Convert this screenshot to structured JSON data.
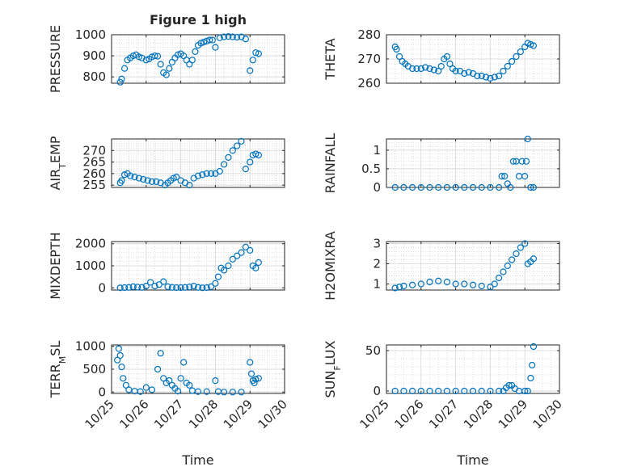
{
  "figure": {
    "title": "Figure 1 high"
  },
  "chart_data": [
    {
      "type": "scatter",
      "title": "Figure 1 high",
      "ylabel": "PRESSURE",
      "xlabel": "",
      "marker_color": "#0072bd",
      "xlim": [
        "10/25",
        "10/30"
      ],
      "ylim": [
        770,
        1000
      ],
      "yticks": [
        800,
        900,
        1000
      ],
      "xticklabels": [],
      "grid": true,
      "x": [
        "10/25 06:00",
        "10/25 07:00",
        "10/25 09:00",
        "10/25 11:00",
        "10/25 13:00",
        "10/25 15:00",
        "10/25 17:00",
        "10/25 19:00",
        "10/25 21:00",
        "10/26 00:00",
        "10/26 02:00",
        "10/26 04:00",
        "10/26 06:00",
        "10/26 08:00",
        "10/26 10:00",
        "10/26 12:00",
        "10/26 14:00",
        "10/26 16:00",
        "10/26 18:00",
        "10/26 20:00",
        "10/26 22:00",
        "10/27 00:00",
        "10/27 02:00",
        "10/27 04:00",
        "10/27 06:00",
        "10/27 08:00",
        "10/27 10:00",
        "10/27 12:00",
        "10/27 14:00",
        "10/27 16:00",
        "10/27 18:00",
        "10/27 20:00",
        "10/27 22:00",
        "10/28 00:00",
        "10/28 03:00",
        "10/28 06:00",
        "10/28 09:00",
        "10/28 12:00",
        "10/28 15:00",
        "10/28 18:00",
        "10/28 21:00",
        "10/29 00:00",
        "10/29 02:00",
        "10/29 04:00",
        "10/29 06:00"
      ],
      "y": [
        775,
        790,
        840,
        880,
        890,
        900,
        905,
        895,
        890,
        880,
        885,
        895,
        900,
        898,
        860,
        820,
        810,
        840,
        870,
        890,
        905,
        910,
        900,
        880,
        860,
        880,
        920,
        950,
        960,
        965,
        970,
        975,
        975,
        940,
        985,
        990,
        992,
        990,
        988,
        990,
        980,
        830,
        880,
        915,
        910
      ]
    },
    {
      "type": "scatter",
      "ylabel": "THETA",
      "xlabel": "",
      "marker_color": "#0072bd",
      "xlim": [
        "10/25",
        "10/30"
      ],
      "ylim": [
        260,
        280
      ],
      "yticks": [
        260,
        270,
        280
      ],
      "xticklabels": [],
      "grid": true,
      "x": [
        "10/25 06:00",
        "10/25 07:00",
        "10/25 09:00",
        "10/25 11:00",
        "10/25 13:00",
        "10/25 15:00",
        "10/25 18:00",
        "10/25 21:00",
        "10/26 00:00",
        "10/26 03:00",
        "10/26 06:00",
        "10/26 09:00",
        "10/26 12:00",
        "10/26 14:00",
        "10/26 16:00",
        "10/26 18:00",
        "10/26 20:00",
        "10/26 22:00",
        "10/27 00:00",
        "10/27 03:00",
        "10/27 06:00",
        "10/27 09:00",
        "10/27 12:00",
        "10/27 15:00",
        "10/27 18:00",
        "10/27 21:00",
        "10/28 00:00",
        "10/28 03:00",
        "10/28 06:00",
        "10/28 09:00",
        "10/28 12:00",
        "10/28 15:00",
        "10/28 18:00",
        "10/28 21:00",
        "10/29 00:00",
        "10/29 02:00",
        "10/29 04:00",
        "10/29 06:00"
      ],
      "y": [
        275,
        274,
        271,
        269,
        268,
        267,
        266,
        266,
        266,
        266.5,
        266,
        265.5,
        265,
        267,
        270,
        271,
        268,
        266,
        265,
        265,
        264,
        264.5,
        264,
        263,
        263,
        262.5,
        262,
        262.5,
        263,
        265,
        267,
        269,
        271,
        273,
        275,
        276.5,
        276,
        275.5
      ]
    },
    {
      "type": "scatter",
      "ylabel": "AIR_TEMP",
      "xlabel": "",
      "marker_color": "#0072bd",
      "xlim": [
        "10/25",
        "10/30"
      ],
      "ylim": [
        254,
        275
      ],
      "yticks": [
        255,
        260,
        265,
        270
      ],
      "xticklabels": [],
      "grid": true,
      "x": [
        "10/25 06:00",
        "10/25 07:00",
        "10/25 09:00",
        "10/25 11:00",
        "10/25 13:00",
        "10/25 16:00",
        "10/25 19:00",
        "10/25 22:00",
        "10/26 01:00",
        "10/26 04:00",
        "10/26 07:00",
        "10/26 10:00",
        "10/26 13:00",
        "10/26 15:00",
        "10/26 17:00",
        "10/26 19:00",
        "10/26 21:00",
        "10/27 00:00",
        "10/27 03:00",
        "10/27 06:00",
        "10/27 09:00",
        "10/27 12:00",
        "10/27 15:00",
        "10/27 18:00",
        "10/27 21:00",
        "10/28 00:00",
        "10/28 03:00",
        "10/28 06:00",
        "10/28 09:00",
        "10/28 12:00",
        "10/28 15:00",
        "10/28 18:00",
        "10/28 21:00",
        "10/29 00:00",
        "10/29 02:00",
        "10/29 04:00",
        "10/29 06:00"
      ],
      "y": [
        256,
        257,
        259.5,
        260,
        259,
        258.5,
        258,
        257.5,
        257,
        256.5,
        256.5,
        256,
        255,
        256,
        257,
        258,
        258.5,
        257,
        256,
        255,
        258,
        259,
        259.5,
        260,
        260,
        260,
        261,
        264,
        267,
        270,
        272,
        274,
        262,
        265,
        268,
        268.5,
        268
      ]
    },
    {
      "type": "scatter",
      "ylabel": "RAINFALL",
      "xlabel": "",
      "marker_color": "#0072bd",
      "xlim": [
        "10/25",
        "10/30"
      ],
      "ylim": [
        0,
        1.3
      ],
      "yticks": [
        0,
        0.5,
        1
      ],
      "xticklabels": [],
      "grid": true,
      "x": [
        "10/25 06:00",
        "10/25 12:00",
        "10/25 18:00",
        "10/26 00:00",
        "10/26 06:00",
        "10/26 12:00",
        "10/26 18:00",
        "10/27 00:00",
        "10/27 06:00",
        "10/27 12:00",
        "10/27 18:00",
        "10/28 00:00",
        "10/28 06:00",
        "10/28 08:00",
        "10/28 10:00",
        "10/28 12:00",
        "10/28 14:00",
        "10/28 16:00",
        "10/28 18:00",
        "10/28 20:00",
        "10/28 22:00",
        "10/29 00:00",
        "10/29 01:00",
        "10/29 02:00",
        "10/29 04:00",
        "10/29 06:00"
      ],
      "y": [
        0,
        0,
        0,
        0,
        0,
        0,
        0,
        0,
        0,
        0,
        0,
        0,
        0,
        0.3,
        0.3,
        0.1,
        0,
        0.7,
        0.7,
        0.3,
        0.7,
        0.3,
        0.7,
        1.3,
        0,
        0
      ]
    },
    {
      "type": "scatter",
      "ylabel": "MIXDEPTH",
      "xlabel": "",
      "marker_color": "#0072bd",
      "xlim": [
        "10/25",
        "10/30"
      ],
      "ylim": [
        -100,
        2100
      ],
      "yticks": [
        0,
        1000,
        2000
      ],
      "xticklabels": [],
      "grid": true,
      "x": [
        "10/25 06:00",
        "10/25 09:00",
        "10/25 12:00",
        "10/25 15:00",
        "10/25 18:00",
        "10/25 21:00",
        "10/26 00:00",
        "10/26 03:00",
        "10/26 06:00",
        "10/26 09:00",
        "10/26 12:00",
        "10/26 15:00",
        "10/26 18:00",
        "10/26 21:00",
        "10/27 00:00",
        "10/27 03:00",
        "10/27 06:00",
        "10/27 09:00",
        "10/27 12:00",
        "10/27 15:00",
        "10/27 18:00",
        "10/27 21:00",
        "10/28 00:00",
        "10/28 02:00",
        "10/28 04:00",
        "10/28 06:00",
        "10/28 09:00",
        "10/28 12:00",
        "10/28 15:00",
        "10/28 18:00",
        "10/28 21:00",
        "10/29 00:00",
        "10/29 02:00",
        "10/29 04:00",
        "10/29 06:00"
      ],
      "y": [
        0,
        10,
        20,
        50,
        30,
        20,
        80,
        250,
        80,
        150,
        280,
        50,
        20,
        10,
        10,
        20,
        40,
        80,
        20,
        0,
        10,
        50,
        200,
        500,
        900,
        800,
        1000,
        1300,
        1450,
        1600,
        1850,
        1700,
        1000,
        900,
        1150
      ]
    },
    {
      "type": "scatter",
      "ylabel": "H2OMIXRA",
      "xlabel": "",
      "marker_color": "#0072bd",
      "xlim": [
        "10/25",
        "10/30"
      ],
      "ylim": [
        0.7,
        3.1
      ],
      "yticks": [
        1,
        2,
        3
      ],
      "xticklabels": [],
      "grid": true,
      "x": [
        "10/25 06:00",
        "10/25 09:00",
        "10/25 12:00",
        "10/25 18:00",
        "10/26 00:00",
        "10/26 06:00",
        "10/26 12:00",
        "10/26 18:00",
        "10/27 00:00",
        "10/27 06:00",
        "10/27 12:00",
        "10/27 18:00",
        "10/28 00:00",
        "10/28 03:00",
        "10/28 06:00",
        "10/28 09:00",
        "10/28 12:00",
        "10/28 15:00",
        "10/28 18:00",
        "10/28 21:00",
        "10/29 00:00",
        "10/29 02:00",
        "10/29 04:00",
        "10/29 06:00"
      ],
      "y": [
        0.8,
        0.85,
        0.9,
        0.95,
        1.0,
        1.1,
        1.15,
        1.1,
        1.0,
        1.0,
        0.95,
        0.9,
        0.85,
        1.0,
        1.3,
        1.6,
        1.9,
        2.2,
        2.5,
        2.8,
        3.0,
        2.0,
        2.1,
        2.25
      ]
    },
    {
      "type": "scatter",
      "ylabel": "TERR_MSL",
      "xlabel": "Time",
      "marker_color": "#0072bd",
      "xlim": [
        "10/25",
        "10/30"
      ],
      "ylim": [
        -30,
        1030
      ],
      "yticks": [
        0,
        500,
        1000
      ],
      "xticklabels": [
        "10/25",
        "10/26",
        "10/27",
        "10/28",
        "10/29",
        "10/30"
      ],
      "grid": true,
      "x": [
        "10/25 04:00",
        "10/25 05:00",
        "10/25 06:00",
        "10/25 07:00",
        "10/25 08:00",
        "10/25 10:00",
        "10/25 12:00",
        "10/25 16:00",
        "10/25 20:00",
        "10/26 00:00",
        "10/26 04:00",
        "10/26 08:00",
        "10/26 10:00",
        "10/26 12:00",
        "10/26 14:00",
        "10/26 16:00",
        "10/26 18:00",
        "10/26 20:00",
        "10/26 22:00",
        "10/27 00:00",
        "10/27 02:00",
        "10/27 04:00",
        "10/27 06:00",
        "10/27 08:00",
        "10/27 12:00",
        "10/27 18:00",
        "10/28 00:00",
        "10/28 02:00",
        "10/28 06:00",
        "10/28 12:00",
        "10/28 18:00",
        "10/29 00:00",
        "10/29 01:00",
        "10/29 02:00",
        "10/29 03:00",
        "10/29 04:00",
        "10/29 06:00"
      ],
      "y": [
        700,
        950,
        800,
        550,
        300,
        150,
        50,
        20,
        10,
        100,
        50,
        500,
        850,
        300,
        200,
        250,
        150,
        80,
        20,
        300,
        650,
        200,
        150,
        30,
        10,
        10,
        250,
        10,
        0,
        0,
        0,
        650,
        400,
        250,
        200,
        280,
        300
      ]
    },
    {
      "type": "scatter",
      "ylabel": "SUN_FLUX",
      "xlabel": "Time",
      "marker_color": "#0072bd",
      "xlim": [
        "10/25",
        "10/30"
      ],
      "ylim": [
        -3,
        57
      ],
      "yticks": [
        0,
        50
      ],
      "xticklabels": [
        "10/25",
        "10/26",
        "10/27",
        "10/28",
        "10/29",
        "10/30"
      ],
      "grid": true,
      "x": [
        "10/25 06:00",
        "10/25 12:00",
        "10/25 18:00",
        "10/26 00:00",
        "10/26 06:00",
        "10/26 12:00",
        "10/26 18:00",
        "10/27 00:00",
        "10/27 06:00",
        "10/27 12:00",
        "10/27 18:00",
        "10/28 00:00",
        "10/28 06:00",
        "10/28 09:00",
        "10/28 11:00",
        "10/28 13:00",
        "10/28 15:00",
        "10/28 17:00",
        "10/28 20:00",
        "10/29 00:00",
        "10/29 02:00",
        "10/29 04:00",
        "10/29 05:00",
        "10/29 06:00"
      ],
      "y": [
        0,
        0,
        0,
        0,
        0,
        0,
        0,
        0,
        0,
        0,
        0,
        0,
        0,
        0,
        4,
        7,
        7,
        3,
        0,
        0,
        0,
        16,
        32,
        55
      ]
    }
  ]
}
